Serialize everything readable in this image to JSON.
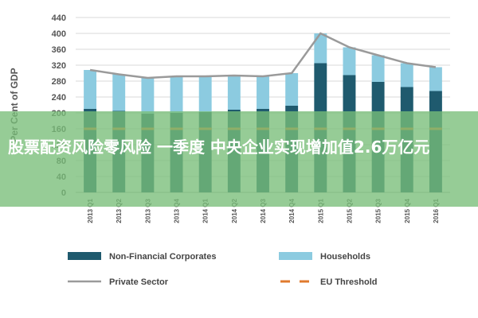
{
  "chart_data": {
    "type": "bar",
    "ylabel": "Per Cent of GDP",
    "ylim": [
      0,
      440
    ],
    "yticks": [
      0,
      40,
      80,
      120,
      160,
      200,
      240,
      280,
      320,
      360,
      400,
      440
    ],
    "ytick_labels": [
      "0",
      "40",
      "80",
      "120",
      "160",
      "200",
      "240",
      "280",
      "320",
      "360",
      "400",
      "440"
    ],
    "categories": [
      "2013 Q1",
      "2013 Q2",
      "2013 Q3",
      "2013 Q4",
      "2014 Q1",
      "2014 Q2",
      "2014 Q3",
      "2014 Q4",
      "2015 Q1",
      "2015 Q2",
      "2015 Q3",
      "2015 Q4",
      "2016 Q1"
    ],
    "stacked": true,
    "grid": true,
    "legend_position": "bottom",
    "series": [
      {
        "name": "Non-Financial Corporates",
        "kind": "bar",
        "color": "#1f5a6e",
        "values": [
          210,
          205,
          198,
          200,
          202,
          208,
          210,
          218,
          325,
          295,
          278,
          265,
          255
        ]
      },
      {
        "name": "Households",
        "kind": "bar",
        "color": "#8ccbe0",
        "values": [
          98,
          92,
          90,
          92,
          90,
          86,
          82,
          82,
          75,
          70,
          67,
          60,
          60
        ]
      },
      {
        "name": "Private Sector",
        "kind": "line",
        "color": "#9a9a9a",
        "values": [
          308,
          297,
          288,
          292,
          292,
          294,
          292,
          300,
          400,
          365,
          345,
          325,
          315
        ]
      },
      {
        "name": "EU Threshold",
        "kind": "line",
        "style": "dashed",
        "color": "#e07a2e",
        "values": [
          160,
          160,
          160,
          160,
          160,
          160,
          160,
          160,
          160,
          160,
          160,
          160,
          160
        ]
      }
    ]
  },
  "watermark": {
    "text": "股票配资风险零风险 一季度 中央企业实现增加值2.6万亿元"
  }
}
